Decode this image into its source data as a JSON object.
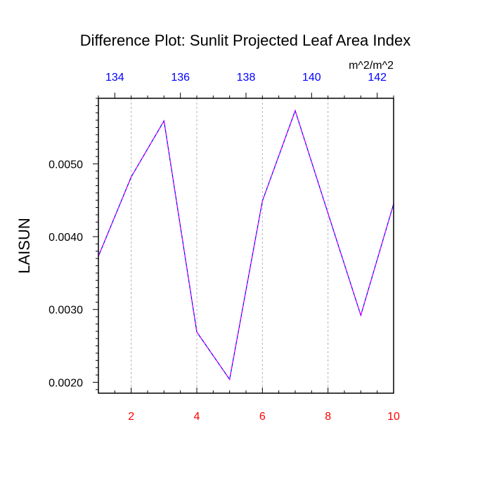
{
  "chart_data": {
    "type": "line",
    "title": "Difference Plot: Sunlit Projected Leaf Area Index",
    "units": "m^2/m^2",
    "ylabel": "LAISUN",
    "xlabel": "",
    "x": [
      1,
      2,
      3,
      4,
      5,
      6,
      7,
      8,
      9,
      10
    ],
    "series": [
      {
        "values": [
          0.00373,
          0.00482,
          0.00559,
          0.00269,
          0.00204,
          0.00449,
          0.00573,
          0.00432,
          0.00292,
          0.00445
        ]
      }
    ],
    "xlim": [
      1,
      10
    ],
    "ylim": [
      0.00185,
      0.0059
    ],
    "bottom_axis": {
      "ticks": [
        2,
        4,
        6,
        8,
        10
      ],
      "labels": [
        "2",
        "4",
        "6",
        "8",
        "10"
      ],
      "color": "#ff0000"
    },
    "top_axis": {
      "ticks": [
        1.5,
        3.5,
        5.5,
        7.5,
        9.5
      ],
      "labels": [
        "134",
        "136",
        "138",
        "140",
        "142"
      ],
      "color": "#0000ff"
    },
    "y_ticks": [
      0.002,
      0.003,
      0.004,
      0.005
    ],
    "y_tick_labels": [
      "0.0020",
      "0.0030",
      "0.0040",
      "0.0050"
    ],
    "vertical_gridlines": [
      2,
      4,
      6,
      8
    ],
    "line_colors": [
      "#0000ff",
      "#ff00ff"
    ],
    "grid": "vertical-dashed",
    "legend": "none"
  }
}
